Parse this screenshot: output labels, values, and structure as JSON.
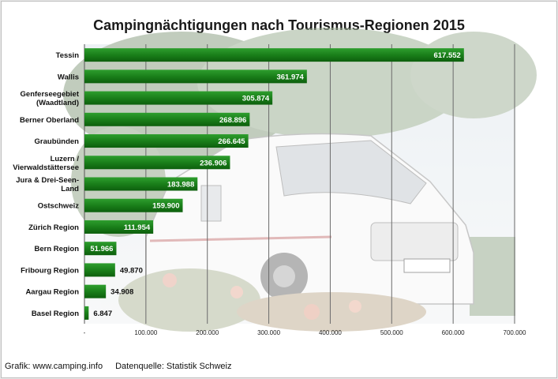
{
  "colors": {
    "bar": "#1a7f1a",
    "bar_light": "#2e9e2e",
    "bar_dark": "#0d5f0d",
    "gridline": "#6b6b6b",
    "sky": "#eef2f5",
    "foliage": "#a9b8a2",
    "camper": "#f4f4f4"
  },
  "background_picture": [
    "trees",
    "camper-van",
    "flowers"
  ],
  "footer": {
    "credit": "Grafik: www.camping.info",
    "source": "Datenquelle: Statistik Schweiz"
  },
  "chart_data": {
    "type": "bar",
    "orientation": "horizontal",
    "title": "Campingnächtigungen nach Tourismus-Regionen 2015",
    "categories": [
      [
        "Tessin"
      ],
      [
        "Wallis"
      ],
      [
        "Genferseegebiet",
        "(Waadtland)"
      ],
      [
        "Berner Oberland"
      ],
      [
        "Graubünden"
      ],
      [
        "Luzern /",
        "Vierwaldstättersee"
      ],
      [
        "Jura & Drei-Seen-",
        "Land"
      ],
      [
        "Ostschweiz"
      ],
      [
        "Zürich Region"
      ],
      [
        "Bern Region"
      ],
      [
        "Fribourg Region"
      ],
      [
        "Aargau Region"
      ],
      [
        "Basel Region"
      ]
    ],
    "values": [
      617552,
      361974,
      305874,
      268896,
      266645,
      236906,
      183988,
      159900,
      111954,
      51966,
      49870,
      34908,
      6847
    ],
    "value_labels": [
      "617.552",
      "361.974",
      "305.874",
      "268.896",
      "266.645",
      "236.906",
      "183.988",
      "159.900",
      "111.954",
      "51.966",
      "49.870",
      "34.908",
      "6.847"
    ],
    "xlim": [
      0,
      700000
    ],
    "x_ticks": [
      0,
      100000,
      200000,
      300000,
      400000,
      500000,
      600000,
      700000
    ],
    "x_tick_labels": [
      "-",
      "100.000",
      "200.000",
      "300.000",
      "400.000",
      "500.000",
      "600.000",
      "700.000"
    ],
    "grid": true
  }
}
